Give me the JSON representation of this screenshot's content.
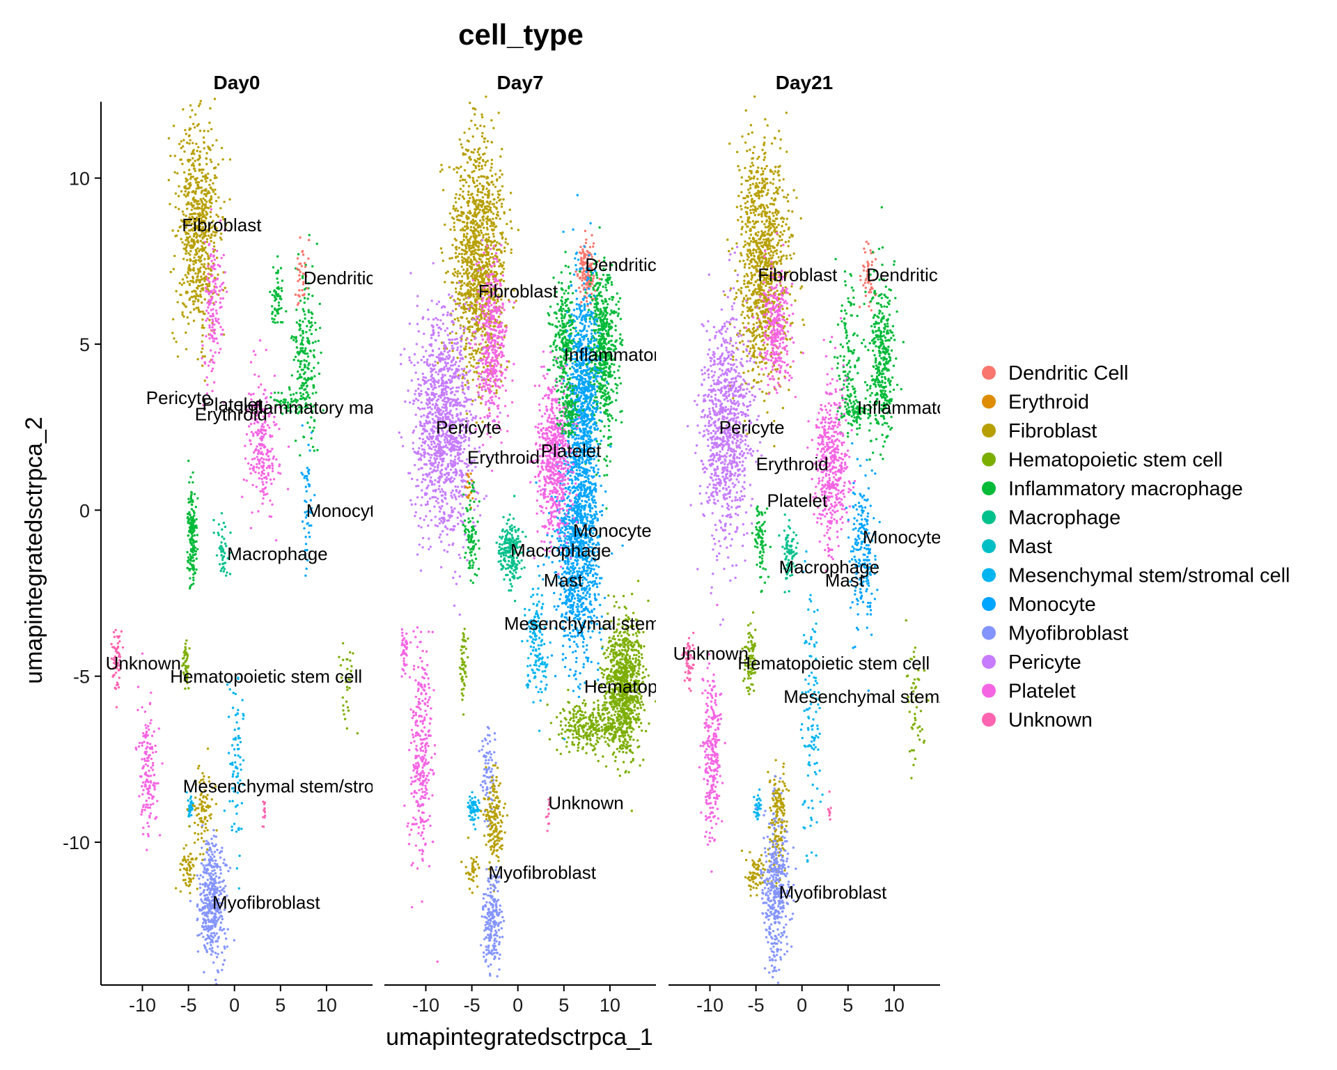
{
  "chart_data": {
    "type": "scatter",
    "title": "cell_type",
    "xlabel": "umapintegratedsctrpca_1",
    "ylabel": "umapintegratedsctrpca_2",
    "xlim": [
      -14.5,
      15
    ],
    "ylim": [
      -14.3,
      12.3
    ],
    "x_ticks": [
      -10,
      -5,
      0,
      5,
      10
    ],
    "x_tick_labels": [
      "-10",
      "-5",
      "0",
      "5",
      "10"
    ],
    "y_ticks": [
      10,
      5,
      0,
      -5,
      -10
    ],
    "y_tick_labels": [
      "10",
      "5",
      "0",
      "-5",
      "-10"
    ],
    "grid": false,
    "legend_position": "right",
    "panels": [
      "Day0",
      "Day7",
      "Day21"
    ],
    "series": [
      {
        "name": "Dendritic Cell",
        "color": "#F8766D"
      },
      {
        "name": "Erythroid",
        "color": "#DE8C00"
      },
      {
        "name": "Fibroblast",
        "color": "#B79F00"
      },
      {
        "name": "Hematopoietic stem cell",
        "color": "#7CAE00"
      },
      {
        "name": "Inflammatory macrophage",
        "color": "#00BA38"
      },
      {
        "name": "Macrophage",
        "color": "#00C08B"
      },
      {
        "name": "Mast",
        "color": "#00BFC4"
      },
      {
        "name": "Mesenchymal stem/stromal cell",
        "color": "#00B4F0"
      },
      {
        "name": "Monocyte",
        "color": "#00A5FF"
      },
      {
        "name": "Myofibroblast",
        "color": "#8494FF"
      },
      {
        "name": "Pericyte",
        "color": "#C77CFF"
      },
      {
        "name": "Platelet",
        "color": "#F564E3"
      },
      {
        "name": "Unknown",
        "color": "#FF64B0"
      }
    ],
    "clusters": [
      {
        "panel": 0,
        "type": "Fibroblast",
        "cx": -4,
        "cy": 8.5,
        "sx": 1.2,
        "sy": 1.6,
        "n": 700
      },
      {
        "panel": 0,
        "type": "Platelet",
        "cx": -2.3,
        "cy": 6.0,
        "sx": 0.5,
        "sy": 1.2,
        "n": 150
      },
      {
        "panel": 0,
        "type": "Platelet",
        "cx": 3.0,
        "cy": 2.0,
        "sx": 0.9,
        "sy": 1.0,
        "n": 230
      },
      {
        "panel": 0,
        "type": "Inflammatory macrophage",
        "cx": 7.8,
        "cy": 4.6,
        "sx": 0.7,
        "sy": 1.3,
        "n": 200
      },
      {
        "panel": 0,
        "type": "Inflammatory macrophage",
        "cx": 4.6,
        "cy": 6.4,
        "sx": 0.3,
        "sy": 0.5,
        "n": 60
      },
      {
        "panel": 0,
        "type": "Inflammatory macrophage",
        "cx": 6.0,
        "cy": 3.2,
        "sx": 1.0,
        "sy": 0.2,
        "n": 60
      },
      {
        "panel": 0,
        "type": "Dendritic Cell",
        "cx": 7.3,
        "cy": 7.0,
        "sx": 0.4,
        "sy": 0.5,
        "n": 35
      },
      {
        "panel": 0,
        "type": "Monocyte",
        "cx": 8.0,
        "cy": 0.0,
        "sx": 0.4,
        "sy": 1.3,
        "n": 50
      },
      {
        "panel": 0,
        "type": "Inflammatory macrophage",
        "cx": -4.6,
        "cy": -0.8,
        "sx": 0.25,
        "sy": 0.7,
        "n": 170
      },
      {
        "panel": 0,
        "type": "Macrophage",
        "cx": -1.3,
        "cy": -1.2,
        "sx": 0.35,
        "sy": 0.4,
        "n": 45
      },
      {
        "panel": 0,
        "type": "Unknown",
        "cx": -12.8,
        "cy": -4.5,
        "sx": 0.3,
        "sy": 0.5,
        "n": 60
      },
      {
        "panel": 0,
        "type": "Platelet",
        "cx": -9.4,
        "cy": -7.8,
        "sx": 0.5,
        "sy": 1.0,
        "n": 150
      },
      {
        "panel": 0,
        "type": "Hematopoietic stem cell",
        "cx": -5.3,
        "cy": -4.7,
        "sx": 0.2,
        "sy": 0.4,
        "n": 45
      },
      {
        "panel": 0,
        "type": "Hematopoietic stem cell",
        "cx": 12.3,
        "cy": -5.3,
        "sx": 0.4,
        "sy": 0.9,
        "n": 30
      },
      {
        "panel": 0,
        "type": "Mesenchymal stem/stromal cell",
        "cx": 0.3,
        "cy": -7.7,
        "sx": 0.4,
        "sy": 1.4,
        "n": 80
      },
      {
        "panel": 0,
        "type": "Mesenchymal stem/stromal cell",
        "cx": -4.8,
        "cy": -8.9,
        "sx": 0.2,
        "sy": 0.2,
        "n": 35
      },
      {
        "panel": 0,
        "type": "Fibroblast",
        "cx": -3.3,
        "cy": -9.2,
        "sx": 0.6,
        "sy": 0.6,
        "n": 90
      },
      {
        "panel": 0,
        "type": "Fibroblast",
        "cx": -5.0,
        "cy": -10.8,
        "sx": 0.5,
        "sy": 0.3,
        "n": 60
      },
      {
        "panel": 0,
        "type": "Myofibroblast",
        "cx": -2.4,
        "cy": -11.8,
        "sx": 0.7,
        "sy": 0.9,
        "n": 420
      },
      {
        "panel": 0,
        "type": "Unknown",
        "cx": 3.2,
        "cy": -9.1,
        "sx": 0.1,
        "sy": 0.2,
        "n": 12
      },
      {
        "panel": 1,
        "type": "Fibroblast",
        "cx": -4.2,
        "cy": 7.5,
        "sx": 1.5,
        "sy": 1.8,
        "n": 1200
      },
      {
        "panel": 1,
        "type": "Platelet",
        "cx": -2.8,
        "cy": 5.0,
        "sx": 0.8,
        "sy": 1.3,
        "n": 400
      },
      {
        "panel": 1,
        "type": "Pericyte",
        "cx": -8.0,
        "cy": 2.5,
        "sx": 1.6,
        "sy": 1.7,
        "n": 1200
      },
      {
        "panel": 1,
        "type": "Erythroid",
        "cx": -5.3,
        "cy": 0.7,
        "sx": 0.2,
        "sy": 0.3,
        "n": 20
      },
      {
        "panel": 1,
        "type": "Dendritic Cell",
        "cx": 7.5,
        "cy": 7.2,
        "sx": 0.5,
        "sy": 0.5,
        "n": 150
      },
      {
        "panel": 1,
        "type": "Inflammatory macrophage",
        "cx": 9.2,
        "cy": 4.8,
        "sx": 0.8,
        "sy": 1.3,
        "n": 600
      },
      {
        "panel": 1,
        "type": "Inflammatory macrophage",
        "cx": 5.0,
        "cy": 5.2,
        "sx": 0.6,
        "sy": 0.9,
        "n": 250
      },
      {
        "panel": 1,
        "type": "Monocyte",
        "cx": 7.2,
        "cy": 3.5,
        "sx": 0.8,
        "sy": 1.8,
        "n": 800
      },
      {
        "panel": 1,
        "type": "Monocyte",
        "cx": 6.5,
        "cy": -1.0,
        "sx": 1.2,
        "sy": 1.7,
        "n": 1100
      },
      {
        "panel": 1,
        "type": "Platelet",
        "cx": 4.0,
        "cy": 1.5,
        "sx": 1.0,
        "sy": 1.2,
        "n": 600
      },
      {
        "panel": 1,
        "type": "Inflammatory macrophage",
        "cx": 5.5,
        "cy": 3.0,
        "sx": 0.6,
        "sy": 0.4,
        "n": 120
      },
      {
        "panel": 1,
        "type": "Macrophage",
        "cx": -0.8,
        "cy": -1.3,
        "sx": 0.6,
        "sy": 0.5,
        "n": 200
      },
      {
        "panel": 1,
        "type": "Inflammatory macrophage",
        "cx": -5.0,
        "cy": -0.8,
        "sx": 0.4,
        "sy": 0.8,
        "n": 90
      },
      {
        "panel": 1,
        "type": "Mesenchymal stem/stromal cell",
        "cx": 2.0,
        "cy": -4.0,
        "sx": 0.6,
        "sy": 0.8,
        "n": 150
      },
      {
        "panel": 1,
        "type": "Hematopoietic stem cell",
        "cx": 11.5,
        "cy": -5.3,
        "sx": 1.0,
        "sy": 1.0,
        "n": 900
      },
      {
        "panel": 1,
        "type": "Hematopoietic stem cell",
        "cx": 8.0,
        "cy": -6.5,
        "sx": 1.8,
        "sy": 0.35,
        "n": 300
      },
      {
        "panel": 1,
        "type": "Hematopoietic stem cell",
        "cx": -6.0,
        "cy": -4.5,
        "sx": 0.2,
        "sy": 0.5,
        "n": 50
      },
      {
        "panel": 1,
        "type": "Platelet",
        "cx": -10.5,
        "cy": -7.5,
        "sx": 0.6,
        "sy": 1.7,
        "n": 300
      },
      {
        "panel": 1,
        "type": "Platelet",
        "cx": -12.3,
        "cy": -4.3,
        "sx": 0.2,
        "sy": 0.3,
        "n": 40
      },
      {
        "panel": 1,
        "type": "Myofibroblast",
        "cx": -3.2,
        "cy": -8.0,
        "sx": 0.4,
        "sy": 0.7,
        "n": 80
      },
      {
        "panel": 1,
        "type": "Mesenchymal stem/stromal cell",
        "cx": -4.8,
        "cy": -9.0,
        "sx": 0.3,
        "sy": 0.2,
        "n": 60
      },
      {
        "panel": 1,
        "type": "Fibroblast",
        "cx": -2.6,
        "cy": -9.3,
        "sx": 0.5,
        "sy": 0.7,
        "n": 160
      },
      {
        "panel": 1,
        "type": "Fibroblast",
        "cx": -5.0,
        "cy": -10.9,
        "sx": 0.4,
        "sy": 0.3,
        "n": 40
      },
      {
        "panel": 1,
        "type": "Myofibroblast",
        "cx": -2.8,
        "cy": -12.3,
        "sx": 0.5,
        "sy": 0.7,
        "n": 200
      },
      {
        "panel": 1,
        "type": "Unknown",
        "cx": 3.3,
        "cy": -9.1,
        "sx": 0.1,
        "sy": 0.2,
        "n": 10
      },
      {
        "panel": 2,
        "type": "Fibroblast",
        "cx": -4.2,
        "cy": 7.5,
        "sx": 1.4,
        "sy": 1.8,
        "n": 1000
      },
      {
        "panel": 2,
        "type": "Platelet",
        "cx": -2.8,
        "cy": 5.5,
        "sx": 0.8,
        "sy": 1.0,
        "n": 300
      },
      {
        "panel": 2,
        "type": "Pericyte",
        "cx": -8.2,
        "cy": 2.5,
        "sx": 1.4,
        "sy": 1.7,
        "n": 900
      },
      {
        "panel": 2,
        "type": "Dendritic Cell",
        "cx": 7.3,
        "cy": 7.2,
        "sx": 0.4,
        "sy": 0.5,
        "n": 50
      },
      {
        "panel": 2,
        "type": "Inflammatory macrophage",
        "cx": 8.7,
        "cy": 4.5,
        "sx": 0.7,
        "sy": 1.2,
        "n": 350
      },
      {
        "panel": 2,
        "type": "Inflammatory macrophage",
        "cx": 5.0,
        "cy": 5.0,
        "sx": 0.6,
        "sy": 1.0,
        "n": 100
      },
      {
        "panel": 2,
        "type": "Platelet",
        "cx": 3.2,
        "cy": 1.5,
        "sx": 0.9,
        "sy": 1.3,
        "n": 450
      },
      {
        "panel": 2,
        "type": "Inflammatory macrophage",
        "cx": 5.8,
        "cy": 3.0,
        "sx": 0.9,
        "sy": 0.3,
        "n": 100
      },
      {
        "panel": 2,
        "type": "Monocyte",
        "cx": 6.5,
        "cy": -1.3,
        "sx": 0.7,
        "sy": 1.3,
        "n": 200
      },
      {
        "panel": 2,
        "type": "Inflammatory macrophage",
        "cx": -4.5,
        "cy": -0.8,
        "sx": 0.3,
        "sy": 0.6,
        "n": 80
      },
      {
        "panel": 2,
        "type": "Macrophage",
        "cx": -1.4,
        "cy": -1.3,
        "sx": 0.4,
        "sy": 0.5,
        "n": 80
      },
      {
        "panel": 2,
        "type": "Mesenchymal stem/stromal cell",
        "cx": 1.0,
        "cy": -6.0,
        "sx": 0.5,
        "sy": 2.0,
        "n": 120
      },
      {
        "panel": 2,
        "type": "Unknown",
        "cx": -12.3,
        "cy": -4.5,
        "sx": 0.3,
        "sy": 0.4,
        "n": 50
      },
      {
        "panel": 2,
        "type": "Platelet",
        "cx": -9.7,
        "cy": -7.3,
        "sx": 0.5,
        "sy": 1.3,
        "n": 250
      },
      {
        "panel": 2,
        "type": "Hematopoietic stem cell",
        "cx": -5.6,
        "cy": -4.6,
        "sx": 0.3,
        "sy": 0.5,
        "n": 80
      },
      {
        "panel": 2,
        "type": "Hematopoietic stem cell",
        "cx": 12.3,
        "cy": -5.9,
        "sx": 0.5,
        "sy": 1.0,
        "n": 50
      },
      {
        "panel": 2,
        "type": "Mesenchymal stem/stromal cell",
        "cx": -4.8,
        "cy": -8.9,
        "sx": 0.2,
        "sy": 0.2,
        "n": 30
      },
      {
        "panel": 2,
        "type": "Fibroblast",
        "cx": -2.6,
        "cy": -9.3,
        "sx": 0.5,
        "sy": 0.8,
        "n": 160
      },
      {
        "panel": 2,
        "type": "Fibroblast",
        "cx": -5.0,
        "cy": -10.9,
        "sx": 0.6,
        "sy": 0.3,
        "n": 70
      },
      {
        "panel": 2,
        "type": "Myofibroblast",
        "cx": -2.8,
        "cy": -11.5,
        "sx": 0.7,
        "sy": 1.2,
        "n": 400
      },
      {
        "panel": 2,
        "type": "Unknown",
        "cx": 3.0,
        "cy": -9.1,
        "sx": 0.1,
        "sy": 0.2,
        "n": 10
      }
    ],
    "annotations": [
      {
        "panel": 0,
        "text": "Fibroblast",
        "x": -5.7,
        "y": 8.4
      },
      {
        "panel": 0,
        "text": "Dendritic Cell",
        "x": 7.5,
        "y": 6.8
      },
      {
        "panel": 0,
        "text": "Pericyte",
        "x": -9.6,
        "y": 3.2
      },
      {
        "panel": 0,
        "text": "Inflammatory macrophage",
        "x": 0.5,
        "y": 2.9
      },
      {
        "panel": 0,
        "text": "Platelet",
        "x": -3.5,
        "y": 3.0
      },
      {
        "panel": 0,
        "text": "Erythroid",
        "x": -4.3,
        "y": 2.7
      },
      {
        "panel": 0,
        "text": "Monocyte",
        "x": 7.8,
        "y": -0.2
      },
      {
        "panel": 0,
        "text": "Macrophage",
        "x": -0.8,
        "y": -1.5
      },
      {
        "panel": 0,
        "text": "Unknown",
        "x": -14.0,
        "y": -4.8
      },
      {
        "panel": 0,
        "text": "Hematopoietic stem cell",
        "x": -7.0,
        "y": -5.2
      },
      {
        "panel": 0,
        "text": "Mesenchymal stem/stromal cell",
        "x": -5.6,
        "y": -8.5
      },
      {
        "panel": 0,
        "text": "Myofibroblast",
        "x": -2.4,
        "y": -12.0
      },
      {
        "panel": 1,
        "text": "Fibroblast",
        "x": -4.3,
        "y": 6.4
      },
      {
        "panel": 1,
        "text": "Dendritic Cell",
        "x": 7.3,
        "y": 7.2
      },
      {
        "panel": 1,
        "text": "Inflammatory macro",
        "x": 5.0,
        "y": 4.5
      },
      {
        "panel": 1,
        "text": "Pericyte",
        "x": -8.9,
        "y": 2.3
      },
      {
        "panel": 1,
        "text": "Platelet",
        "x": 2.5,
        "y": 1.6
      },
      {
        "panel": 1,
        "text": "Erythroid",
        "x": -5.5,
        "y": 1.4
      },
      {
        "panel": 1,
        "text": "Monocyte",
        "x": 6.0,
        "y": -0.8
      },
      {
        "panel": 1,
        "text": "Macrophage",
        "x": -0.8,
        "y": -1.4
      },
      {
        "panel": 1,
        "text": "Mast",
        "x": 2.8,
        "y": -2.3
      },
      {
        "panel": 1,
        "text": "Mesenchymal stem/stromal",
        "x": -1.5,
        "y": -3.6
      },
      {
        "panel": 1,
        "text": "Hematopoietic",
        "x": 7.2,
        "y": -5.5
      },
      {
        "panel": 1,
        "text": "Unknown",
        "x": 3.3,
        "y": -9.0
      },
      {
        "panel": 1,
        "text": "Myofibroblast",
        "x": -3.2,
        "y": -11.1
      },
      {
        "panel": 2,
        "text": "Fibroblast",
        "x": -4.8,
        "y": 6.9
      },
      {
        "panel": 2,
        "text": "Dendritic Cell",
        "x": 7.0,
        "y": 6.9
      },
      {
        "panel": 2,
        "text": "Inflammatory macrophage",
        "x": 6.0,
        "y": 2.9
      },
      {
        "panel": 2,
        "text": "Pericyte",
        "x": -9.0,
        "y": 2.3
      },
      {
        "panel": 2,
        "text": "Erythroid",
        "x": -5.0,
        "y": 1.2
      },
      {
        "panel": 2,
        "text": "Platelet",
        "x": -3.8,
        "y": 0.1
      },
      {
        "panel": 2,
        "text": "Monocyte",
        "x": 6.6,
        "y": -1.0
      },
      {
        "panel": 2,
        "text": "Macrophage",
        "x": -2.5,
        "y": -1.9
      },
      {
        "panel": 2,
        "text": "Mast",
        "x": 2.5,
        "y": -2.3
      },
      {
        "panel": 2,
        "text": "Unknown",
        "x": -14.0,
        "y": -4.5
      },
      {
        "panel": 2,
        "text": "Hematopoietic stem cell",
        "x": -7.0,
        "y": -4.8
      },
      {
        "panel": 2,
        "text": "Mesenchymal stem/stromal cell",
        "x": -2.0,
        "y": -5.8
      },
      {
        "panel": 2,
        "text": "Myofibroblast",
        "x": -2.5,
        "y": -11.7
      }
    ]
  }
}
